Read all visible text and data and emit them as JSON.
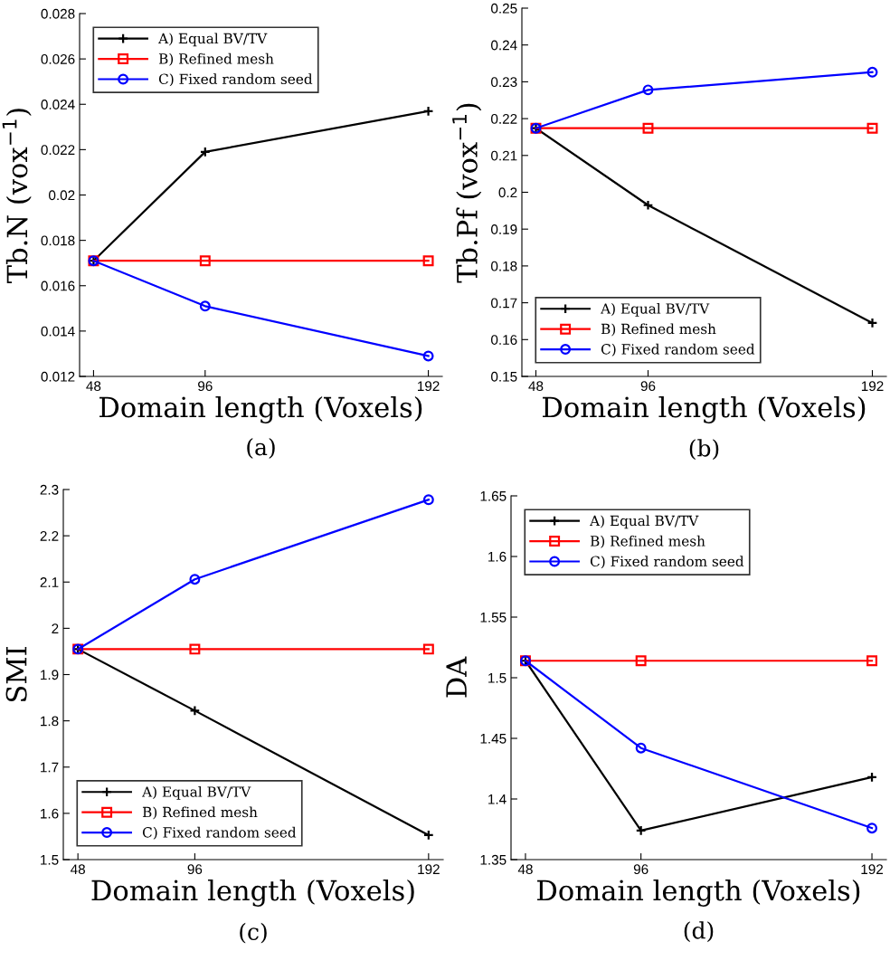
{
  "chart_data": [
    {
      "type": "line",
      "xlabel": "Domain length (Voxels)",
      "ylabel": "Tb.N (vox$^{−1}$)",
      "annotations": [
        "(a)"
      ],
      "x": [
        48,
        96,
        192
      ],
      "xlim": [
        42,
        198
      ],
      "xticks": [
        48,
        96,
        192
      ],
      "ylim": [
        0.012,
        0.028
      ],
      "yticks": [
        0.012,
        0.014,
        0.016,
        0.018,
        0.02,
        0.022,
        0.024,
        0.026,
        0.028
      ],
      "legend": "top left",
      "grid": false,
      "series": [
        {
          "name": "A) Equal BV/TV",
          "color": "#000000",
          "marker": "cross",
          "values": [
            0.0171,
            0.0219,
            0.0237
          ]
        },
        {
          "name": "B) Refined mesh",
          "color": "#ff0000",
          "marker": "square",
          "values": [
            0.0171,
            0.0171,
            0.0171
          ]
        },
        {
          "name": "C) Fixed random seed",
          "color": "#0000ff",
          "marker": "circle",
          "values": [
            0.0171,
            0.0151,
            0.0129
          ]
        }
      ]
    },
    {
      "type": "line",
      "xlabel": "Domain length (Voxels)",
      "ylabel": "Tb.Pf (vox$^{−1}$)",
      "annotations": [
        "(b)"
      ],
      "x": [
        48,
        96,
        192
      ],
      "xlim": [
        42,
        198
      ],
      "xticks": [
        48,
        96,
        192
      ],
      "ylim": [
        0.15,
        0.25
      ],
      "yticks": [
        0.15,
        0.16,
        0.17,
        0.18,
        0.19,
        0.2,
        0.21,
        0.22,
        0.23,
        0.24,
        0.25
      ],
      "legend": "bottom left",
      "grid": false,
      "series": [
        {
          "name": "A) Equal BV/TV",
          "color": "#000000",
          "marker": "cross",
          "values": [
            0.2174,
            0.1965,
            0.1645
          ]
        },
        {
          "name": "B) Refined mesh",
          "color": "#ff0000",
          "marker": "square",
          "values": [
            0.2174,
            0.2174,
            0.2174
          ]
        },
        {
          "name": "C) Fixed random seed",
          "color": "#0000ff",
          "marker": "circle",
          "values": [
            0.2174,
            0.2278,
            0.2326
          ]
        }
      ]
    },
    {
      "type": "line",
      "xlabel": "Domain length (Voxels)",
      "ylabel": "SMI",
      "annotations": [
        "(c)"
      ],
      "x": [
        48,
        96,
        192
      ],
      "xlim": [
        42,
        198
      ],
      "xticks": [
        48,
        96,
        192
      ],
      "ylim": [
        1.5,
        2.3
      ],
      "yticks": [
        1.5,
        1.6,
        1.7,
        1.8,
        1.9,
        2,
        2.1,
        2.2,
        2.3
      ],
      "legend": "bottom left",
      "grid": false,
      "series": [
        {
          "name": "A) Equal BV/TV",
          "color": "#000000",
          "marker": "cross",
          "values": [
            1.955,
            1.822,
            1.553
          ]
        },
        {
          "name": "B) Refined mesh",
          "color": "#ff0000",
          "marker": "square",
          "values": [
            1.955,
            1.955,
            1.955
          ]
        },
        {
          "name": "C) Fixed random seed",
          "color": "#0000ff",
          "marker": "circle",
          "values": [
            1.955,
            2.106,
            2.278
          ]
        }
      ]
    },
    {
      "type": "line",
      "xlabel": "Domain length (Voxels)",
      "ylabel": "DA",
      "annotations": [
        "(d)"
      ],
      "x": [
        48,
        96,
        192
      ],
      "xlim": [
        42,
        198
      ],
      "xticks": [
        48,
        96,
        192
      ],
      "ylim": [
        1.35,
        1.65
      ],
      "yticks": [
        1.35,
        1.4,
        1.45,
        1.5,
        1.55,
        1.6,
        1.65
      ],
      "legend": "top left",
      "grid": false,
      "series": [
        {
          "name": "A) Equal BV/TV",
          "color": "#000000",
          "marker": "cross",
          "values": [
            1.514,
            1.374,
            1.418
          ]
        },
        {
          "name": "B) Refined mesh",
          "color": "#ff0000",
          "marker": "square",
          "values": [
            1.514,
            1.514,
            1.514
          ]
        },
        {
          "name": "C) Fixed random seed",
          "color": "#0000ff",
          "marker": "circle",
          "values": [
            1.514,
            1.442,
            1.376
          ]
        }
      ]
    }
  ]
}
